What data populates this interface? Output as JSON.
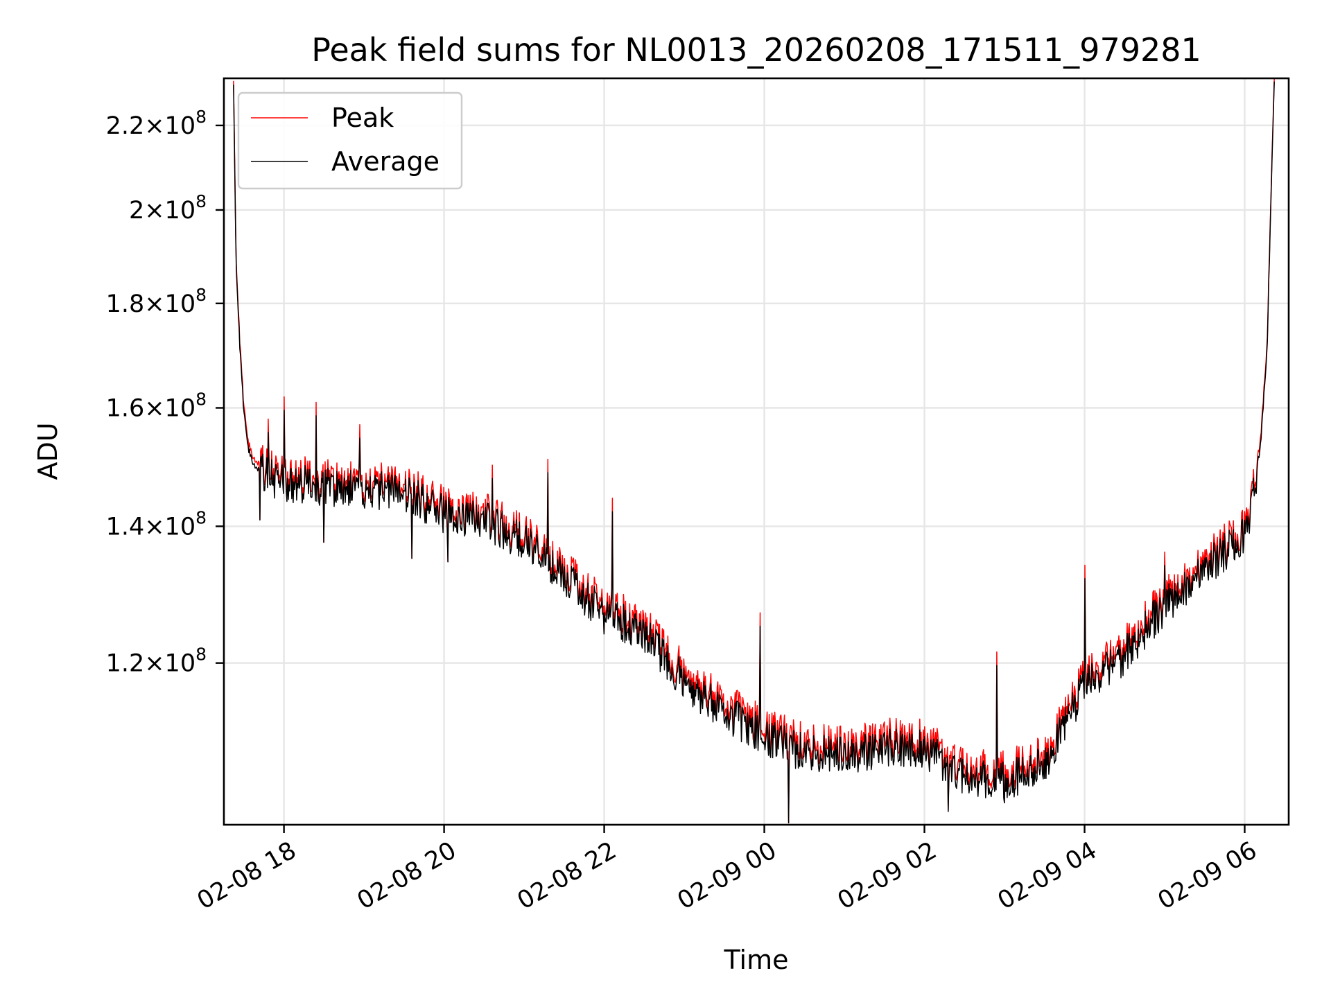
{
  "chart_data": {
    "type": "line",
    "title": "Peak field sums for NL0013_20260208_171511_979281",
    "xlabel": "Time",
    "ylabel": "ADU",
    "yscale": "log",
    "ylim": [
      100000000,
      232000000
    ],
    "xlim_hours": [
      -0.75,
      12.55
    ],
    "x_unit": "hours since 2026-02-08 18:00",
    "grid": true,
    "legend_position": "top-left",
    "x_ticks": [
      {
        "value": 0,
        "label": "02-08 18"
      },
      {
        "value": 2,
        "label": "02-08 20"
      },
      {
        "value": 4,
        "label": "02-08 22"
      },
      {
        "value": 6,
        "label": "02-09 00"
      },
      {
        "value": 8,
        "label": "02-09 02"
      },
      {
        "value": 10,
        "label": "02-09 04"
      },
      {
        "value": 12,
        "label": "02-09 06"
      }
    ],
    "y_ticks": [
      {
        "value": 120000000,
        "mantissa": "1.2",
        "base": "10",
        "exp": "8"
      },
      {
        "value": 140000000,
        "mantissa": "1.4",
        "base": "10",
        "exp": "8"
      },
      {
        "value": 160000000,
        "mantissa": "1.6",
        "base": "10",
        "exp": "8"
      },
      {
        "value": 180000000,
        "mantissa": "1.8",
        "base": "10",
        "exp": "8"
      },
      {
        "value": 200000000,
        "mantissa": "2",
        "base": "10",
        "exp": "8"
      },
      {
        "value": 220000000,
        "mantissa": "2.2",
        "base": "10",
        "exp": "8"
      }
    ],
    "times_sign": "×",
    "series": [
      {
        "name": "Peak",
        "color": "#ff0000",
        "x": [
          -0.63,
          -0.6,
          -0.55,
          -0.5,
          -0.45,
          -0.38,
          -0.3,
          -0.2,
          0,
          0.5,
          1,
          1.5,
          2,
          2.5,
          3,
          3.5,
          4,
          4.5,
          5,
          5.5,
          6,
          6.5,
          7,
          7.5,
          8,
          8.5,
          9,
          9.5,
          10,
          10.5,
          11,
          11.5,
          12,
          12.1,
          12.2,
          12.28,
          12.33,
          12.37
        ],
        "values": [
          232000000,
          190000000,
          172000000,
          160000000,
          154000000,
          151000000,
          150000000,
          149000000,
          148000000,
          147500000,
          147000000,
          146500000,
          143000000,
          142000000,
          138500000,
          133000000,
          128000000,
          125000000,
          118500000,
          114500000,
          111500000,
          109500000,
          109000000,
          110000000,
          110000000,
          106500000,
          106000000,
          108000000,
          118000000,
          122000000,
          129000000,
          134500000,
          139500000,
          145000000,
          155000000,
          172000000,
          205000000,
          232000000
        ]
      },
      {
        "name": "Average",
        "color": "#000000",
        "x": [
          -0.63,
          -0.6,
          -0.55,
          -0.5,
          -0.45,
          -0.38,
          -0.3,
          -0.2,
          0,
          0.5,
          1,
          1.5,
          2,
          2.5,
          3,
          3.5,
          4,
          4.5,
          5,
          5.5,
          6,
          6.5,
          7,
          7.5,
          8,
          8.5,
          9,
          9.5,
          10,
          10.5,
          11,
          11.5,
          12,
          12.1,
          12.2,
          12.28,
          12.33,
          12.37
        ],
        "values": [
          231000000,
          189000000,
          171000000,
          159000000,
          153000000,
          150000000,
          149000000,
          148000000,
          147000000,
          146500000,
          146000000,
          145500000,
          142000000,
          141000000,
          137500000,
          132000000,
          127000000,
          124000000,
          117500000,
          113500000,
          110500000,
          108500000,
          108000000,
          109000000,
          109000000,
          105500000,
          105000000,
          107000000,
          117000000,
          121000000,
          128000000,
          133500000,
          138500000,
          144000000,
          154000000,
          171000000,
          204000000,
          231000000
        ]
      }
    ],
    "spikes": [
      {
        "x": -0.2,
        "value": 158000000
      },
      {
        "x": 0,
        "value": 162000000
      },
      {
        "x": 0.4,
        "value": 161000000
      },
      {
        "x": 0.95,
        "value": 157000000
      },
      {
        "x": 2.6,
        "value": 150000000
      },
      {
        "x": 3.3,
        "value": 151000000
      },
      {
        "x": 4.1,
        "value": 144500000
      },
      {
        "x": 5.95,
        "value": 127000000
      },
      {
        "x": 8.9,
        "value": 121500000
      },
      {
        "x": 10.0,
        "value": 134000000
      },
      {
        "x": 11.0,
        "value": 136000000
      }
    ],
    "dips": [
      {
        "x": -0.3,
        "value": 141000000
      },
      {
        "x": 0.5,
        "value": 137500000
      },
      {
        "x": 1.6,
        "value": 135000000
      },
      {
        "x": 2.05,
        "value": 134500000
      },
      {
        "x": 4.0,
        "value": 124000000
      },
      {
        "x": 5.3,
        "value": 113000000
      },
      {
        "x": 6.3,
        "value": 100200000
      },
      {
        "x": 8.3,
        "value": 101500000
      },
      {
        "x": 9.0,
        "value": 102500000
      }
    ]
  }
}
